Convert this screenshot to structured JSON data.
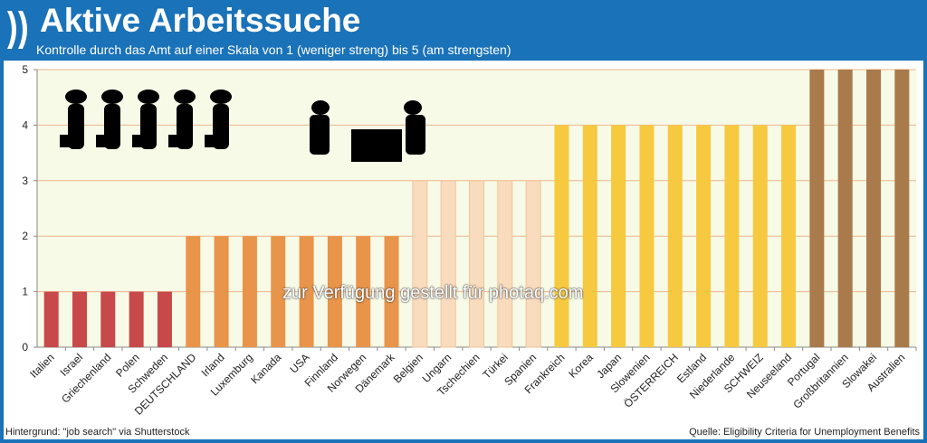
{
  "header": {
    "logo": "❯❯",
    "title": "Aktive Arbeitssuche",
    "subtitle": "Kontrolle durch das Amt auf einer Skala von 1 (weniger streng) bis 5 (am strengsten)"
  },
  "footer": {
    "left": "Hintergrund: \"job search\" via Shutterstock",
    "right": "Quelle: Eligibility Criteria for Unemployment Benefits"
  },
  "watermark": "zur Verfügung gestellt für photaq.com",
  "chart_data": {
    "type": "bar",
    "title": "Aktive Arbeitssuche",
    "xlabel": "",
    "ylabel": "",
    "ylim": [
      0,
      5
    ],
    "yticks": [
      "0",
      "1",
      "2",
      "3",
      "4",
      "5"
    ],
    "grid": true,
    "categories": [
      "Italien",
      "Israel",
      "Griechenland",
      "Polen",
      "Schweden",
      "DEUTSCHLAND",
      "Irland",
      "Luxemburg",
      "Kanada",
      "USA",
      "Finnland",
      "Norwegen",
      "Dänemark",
      "Belgien",
      "Ungarn",
      "Tschechien",
      "Türkei",
      "Spanien",
      "Frankreich",
      "Korea",
      "Japan",
      "Slowenien",
      "ÖSTERREICH",
      "Estland",
      "Niederlande",
      "SCHWEIZ",
      "Neuseeland",
      "Portugal",
      "Großbritannien",
      "Slowakei",
      "Australien"
    ],
    "values": [
      1,
      1,
      1,
      1,
      1,
      2,
      2,
      2,
      2,
      2,
      2,
      2,
      2,
      3,
      3,
      3,
      3,
      3,
      4,
      4,
      4,
      4,
      4,
      4,
      4,
      4,
      4,
      5,
      5,
      5,
      5
    ],
    "colors": {
      "1": "#c8494a",
      "2": "#e8944a",
      "3": "#f9dbbd",
      "4": "#f6c940",
      "5": "#a97a4b"
    },
    "plot_background": "#f6fae6",
    "gridline_color": "#f0b48a"
  }
}
